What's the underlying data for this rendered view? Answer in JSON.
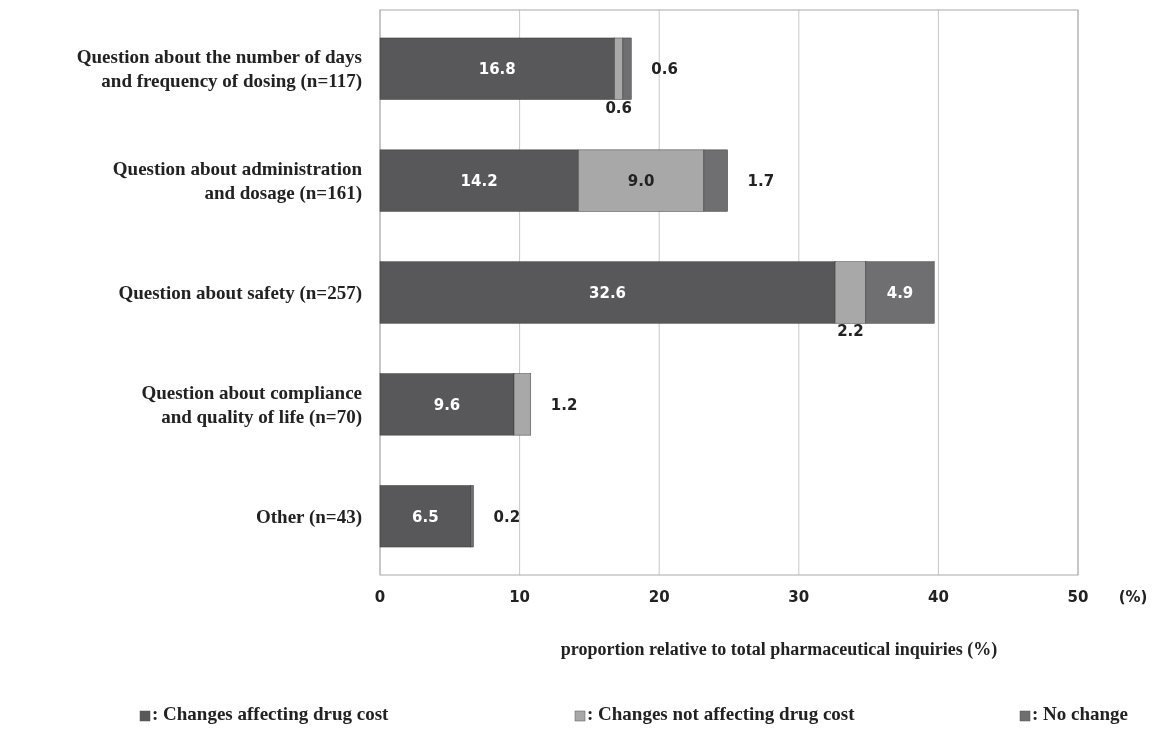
{
  "chart_data": {
    "type": "bar",
    "orientation": "horizontal",
    "stacked": true,
    "categories": [
      "Question about the number of days\nand frequency of dosing (n=117)",
      "Question about administration\nand dosage (n=161)",
      "Question about safety (n=257)",
      "Question about compliance\nand quality of life (n=70)",
      "Other (n=43)"
    ],
    "series": [
      {
        "name": ": Changes affecting drug cost",
        "color": "#58585b",
        "values": [
          16.8,
          14.2,
          32.6,
          9.6,
          6.5
        ],
        "value_labels": [
          "16.8",
          "14.2",
          "32.6",
          "9.6",
          "6.5"
        ]
      },
      {
        "name": ": Changes not affecting drug cost",
        "color": "#a8a8a8",
        "values": [
          0.6,
          9.0,
          2.2,
          1.2,
          null
        ],
        "value_labels": [
          "0.6",
          "9.0",
          "2.2",
          "1.2",
          null
        ]
      },
      {
        "name": ": No change",
        "color": "#6f6f71",
        "values": [
          0.6,
          1.7,
          4.9,
          null,
          0.2
        ],
        "value_labels": [
          "0.6",
          "1.7",
          "4.9",
          null,
          "0.2"
        ]
      }
    ],
    "xlim": [
      0,
      50
    ],
    "xticks": [
      0,
      10,
      20,
      30,
      40,
      50
    ],
    "grid": "x",
    "legend": "bottom",
    "xlabel": "proportion relative to total pharmaceutical inquiries (%)",
    "annotations": [
      "(%)"
    ]
  }
}
